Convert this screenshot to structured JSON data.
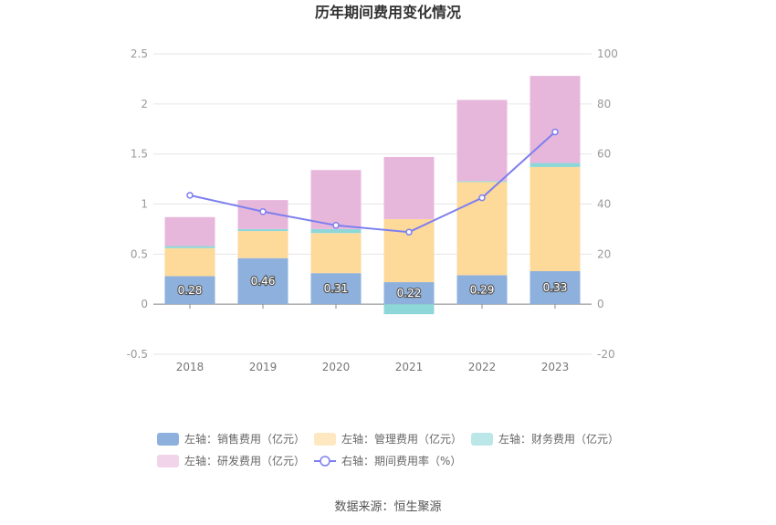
{
  "chart_data": {
    "type": "bar",
    "title": "历年期间费用变化情况",
    "source": "数据来源：恒生聚源",
    "categories": [
      "2018",
      "2019",
      "2020",
      "2021",
      "2022",
      "2023"
    ],
    "stacked": true,
    "series": [
      {
        "name": "左轴：销售费用（亿元）",
        "axis": "left",
        "type": "bar",
        "color": "#8eb0dd",
        "values": [
          0.28,
          0.46,
          0.31,
          0.22,
          0.29,
          0.33
        ],
        "labels": [
          "0.28",
          "0.46",
          "0.31",
          "0.22",
          "0.29",
          "0.33"
        ]
      },
      {
        "name": "左轴：管理费用（亿元）",
        "axis": "left",
        "type": "bar",
        "color": "#fdd99a",
        "values": [
          0.28,
          0.27,
          0.4,
          0.63,
          0.93,
          1.04
        ]
      },
      {
        "name": "左轴：财务费用（亿元）",
        "axis": "left",
        "type": "bar",
        "color": "#8ed7d9",
        "values": [
          0.02,
          0.02,
          0.04,
          -0.1,
          0.01,
          0.04
        ]
      },
      {
        "name": "左轴：研发费用（亿元）",
        "axis": "left",
        "type": "bar",
        "color": "#e7b7db",
        "values": [
          0.29,
          0.29,
          0.59,
          0.62,
          0.81,
          0.87
        ]
      },
      {
        "name": "右轴：期间费用率（%）",
        "axis": "right",
        "type": "line",
        "color": "#7d7ff0",
        "values": [
          43.5,
          37.0,
          31.5,
          28.8,
          42.5,
          68.8
        ]
      }
    ],
    "left_axis": {
      "min": -0.5,
      "max": 2.5,
      "ticks": [
        "-0.5",
        "0",
        "0.5",
        "1",
        "1.5",
        "2",
        "2.5"
      ],
      "tick_values": [
        -0.5,
        0,
        0.5,
        1,
        1.5,
        2,
        2.5
      ]
    },
    "right_axis": {
      "min": -20,
      "max": 100,
      "ticks": [
        "-20",
        "0",
        "20",
        "40",
        "60",
        "80",
        "100"
      ],
      "tick_values": [
        -20,
        0,
        20,
        40,
        60,
        80,
        100
      ]
    },
    "grid": true,
    "legend_position": "bottom"
  }
}
